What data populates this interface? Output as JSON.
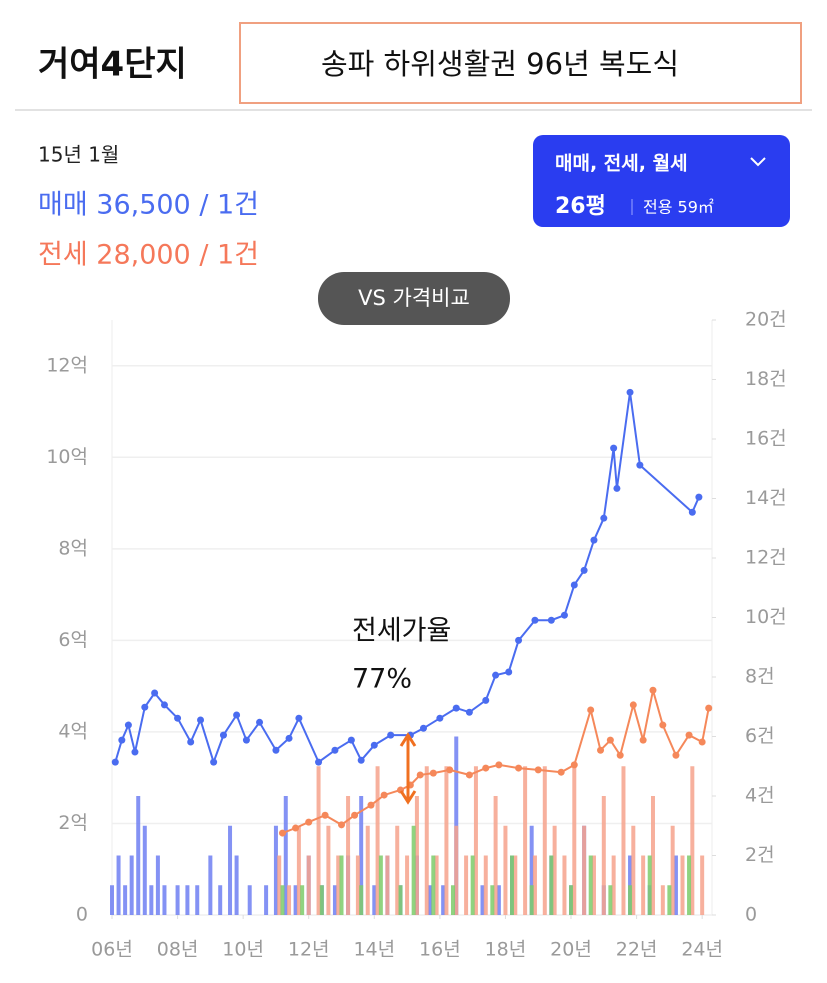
{
  "header": {
    "title": "거여4단지",
    "subtitle": "송파 하위생활권 96년 복도식"
  },
  "info": {
    "date": "15년 1월",
    "sale": "매매 36,500 / 1건",
    "jeonse": "전세 28,000 / 1건"
  },
  "filter": {
    "types": "매매, 전세, 월세",
    "size": "26평",
    "area": "전용 59㎡"
  },
  "compare_button": "VS 가격비교",
  "chart_data": {
    "type": "line",
    "annotation": [
      "전세가율",
      "77%"
    ],
    "xlim": [
      6,
      24.3
    ],
    "xticks": [
      {
        "value": 6,
        "label": "06년"
      },
      {
        "value": 8,
        "label": "08년"
      },
      {
        "value": 10,
        "label": "10년"
      },
      {
        "value": 12,
        "label": "12년"
      },
      {
        "value": 14,
        "label": "14년"
      },
      {
        "value": 16,
        "label": "16년"
      },
      {
        "value": 18,
        "label": "18년"
      },
      {
        "value": 20,
        "label": "20년"
      },
      {
        "value": 22,
        "label": "22년"
      },
      {
        "value": 24,
        "label": "24년"
      }
    ],
    "ylim": [
      0,
      13
    ],
    "yticks": [
      0,
      {
        "value": 2,
        "label": "2억"
      },
      {
        "value": 4,
        "label": "4억"
      },
      {
        "value": 6,
        "label": "6억"
      },
      {
        "value": 8,
        "label": "8억"
      },
      {
        "value": 10,
        "label": "10억"
      },
      {
        "value": 12,
        "label": "12억"
      }
    ],
    "y2lim": [
      0,
      20
    ],
    "y2ticks": [
      0,
      {
        "value": 2,
        "label": "2건"
      },
      {
        "value": 4,
        "label": "4건"
      },
      {
        "value": 6,
        "label": "6건"
      },
      {
        "value": 8,
        "label": "8건"
      },
      {
        "value": 10,
        "label": "10건"
      },
      {
        "value": 12,
        "label": "12건"
      },
      {
        "value": 14,
        "label": "14건"
      },
      {
        "value": 16,
        "label": "16건"
      },
      {
        "value": 18,
        "label": "18건"
      },
      {
        "value": 20,
        "label": "20건"
      }
    ],
    "grid": true,
    "series": [
      {
        "type": "bar",
        "axis": "y2",
        "color": "#6f7ff2",
        "x": [
          6.0,
          6.2,
          6.4,
          6.6,
          6.8,
          7.0,
          7.2,
          7.4,
          7.6,
          8.0,
          8.3,
          8.6,
          9.0,
          9.3,
          9.6,
          9.8,
          10.2,
          10.7,
          11.0,
          11.3,
          11.6,
          12.0,
          12.4,
          12.8,
          13.2,
          13.6,
          14.0,
          14.4,
          14.8,
          15.3,
          15.7,
          16.1,
          16.5,
          17.3,
          17.8,
          18.2,
          18.8,
          19.4,
          20.0,
          20.4,
          21.0,
          21.8,
          22.4,
          23.2
        ],
        "values": [
          1,
          2,
          1,
          2,
          4,
          3,
          1,
          2,
          1,
          1,
          1,
          1,
          2,
          1,
          3,
          2,
          1,
          1,
          3,
          4,
          1,
          2,
          1,
          1,
          2,
          4,
          1,
          2,
          1,
          2,
          1,
          1,
          6,
          1,
          1,
          2,
          3,
          2,
          1,
          3,
          1,
          2,
          1,
          2
        ]
      },
      {
        "type": "bar",
        "axis": "y2",
        "color": "#f6a28c",
        "x": [
          11.1,
          11.4,
          11.7,
          12.0,
          12.3,
          12.6,
          12.9,
          13.2,
          13.5,
          13.8,
          14.1,
          14.4,
          14.7,
          15.0,
          15.3,
          15.6,
          15.9,
          16.2,
          16.5,
          16.8,
          17.1,
          17.4,
          17.7,
          18.0,
          18.3,
          18.6,
          18.9,
          19.2,
          19.5,
          19.8,
          20.1,
          20.4,
          20.7,
          21.0,
          21.3,
          21.6,
          21.9,
          22.2,
          22.5,
          22.8,
          23.1,
          23.4,
          23.7,
          24.0
        ],
        "values": [
          2,
          1,
          3,
          2,
          5,
          3,
          2,
          4,
          2,
          3,
          5,
          2,
          3,
          2,
          4,
          5,
          2,
          5,
          3,
          2,
          5,
          2,
          4,
          3,
          2,
          5,
          2,
          5,
          3,
          2,
          5,
          3,
          2,
          4,
          2,
          5,
          3,
          2,
          4,
          1,
          3,
          2,
          5,
          2
        ]
      },
      {
        "type": "bar",
        "axis": "y2",
        "color": "#7ccb6a",
        "x": [
          11.2,
          11.8,
          12.4,
          13.0,
          13.6,
          14.2,
          14.8,
          15.2,
          15.8,
          16.4,
          17.0,
          17.6,
          18.2,
          18.8,
          19.4,
          20.0,
          20.6,
          21.2,
          21.8,
          22.4,
          23.0,
          23.6
        ],
        "values": [
          1,
          1,
          1,
          2,
          1,
          2,
          1,
          3,
          2,
          1,
          2,
          1,
          2,
          1,
          2,
          1,
          2,
          1,
          1,
          2,
          1,
          2
        ]
      },
      {
        "type": "line",
        "color": "#f5885a",
        "x": [
          11.2,
          11.6,
          12.0,
          12.5,
          13.0,
          13.4,
          13.9,
          14.3,
          14.8,
          15.1,
          15.4,
          15.8,
          16.3,
          16.9,
          17.4,
          17.8,
          18.4,
          19.0,
          19.7,
          20.1,
          20.6,
          20.9,
          21.2,
          21.5,
          21.9,
          22.2,
          22.5,
          22.8,
          23.2,
          23.6,
          24.0,
          24.2
        ],
        "values": [
          1.79,
          1.9,
          2.03,
          2.18,
          1.97,
          2.18,
          2.4,
          2.62,
          2.73,
          2.84,
          3.06,
          3.1,
          3.17,
          3.06,
          3.21,
          3.28,
          3.21,
          3.17,
          3.12,
          3.28,
          4.48,
          3.6,
          3.82,
          3.49,
          4.59,
          3.82,
          4.91,
          4.15,
          3.49,
          3.93,
          3.78,
          4.52
        ]
      },
      {
        "type": "line",
        "color": "#4a6cf0",
        "x": [
          6.1,
          6.3,
          6.5,
          6.7,
          7.0,
          7.3,
          7.6,
          8.0,
          8.4,
          8.7,
          9.1,
          9.4,
          9.8,
          10.1,
          10.5,
          11.0,
          11.4,
          11.7,
          12.3,
          12.8,
          13.3,
          13.6,
          14.0,
          14.5,
          15.1,
          15.5,
          16.0,
          16.5,
          16.9,
          17.4,
          17.7,
          18.1,
          18.4,
          18.9,
          19.4,
          19.8,
          20.1,
          20.4,
          20.7,
          21.0,
          21.3,
          21.4,
          21.8,
          22.1,
          23.7,
          23.9
        ],
        "values": [
          3.34,
          3.82,
          4.15,
          3.56,
          4.54,
          4.85,
          4.59,
          4.3,
          3.78,
          4.26,
          3.34,
          3.93,
          4.37,
          3.82,
          4.21,
          3.6,
          3.86,
          4.3,
          3.34,
          3.6,
          3.82,
          3.38,
          3.71,
          3.93,
          3.93,
          4.08,
          4.3,
          4.52,
          4.43,
          4.69,
          5.24,
          5.31,
          6.0,
          6.44,
          6.44,
          6.55,
          7.21,
          7.53,
          8.19,
          8.67,
          10.2,
          9.32,
          11.42,
          9.83,
          8.8,
          9.13
        ]
      }
    ]
  }
}
